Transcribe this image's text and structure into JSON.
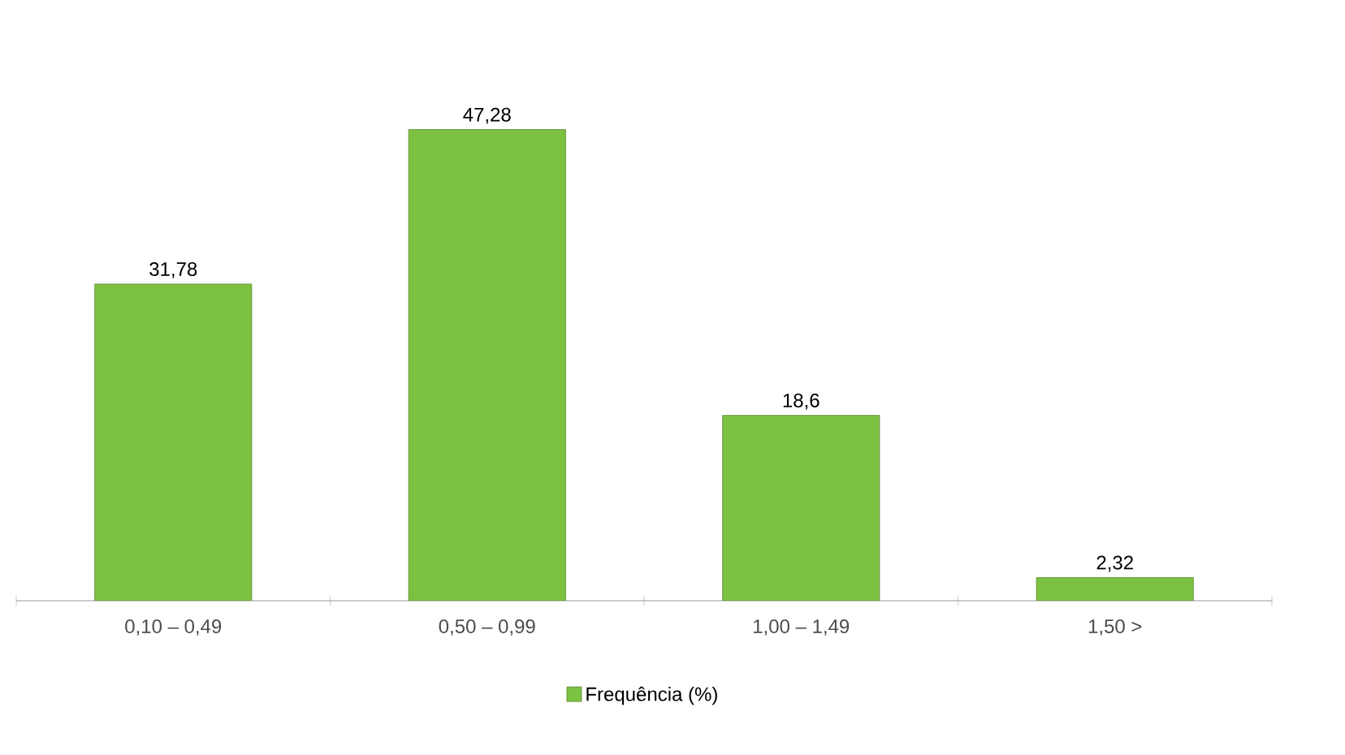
{
  "chart_data": {
    "type": "bar",
    "categories": [
      "0,10 – 0,49",
      "0,50 – 0,99",
      "1,00 – 1,49",
      "1,50 >"
    ],
    "series": [
      {
        "name": "Frequência (%)",
        "color": "#7dc142",
        "values": [
          31.78,
          47.28,
          18.6,
          2.32
        ],
        "value_labels": [
          "31,78",
          "47,28",
          "18,6",
          "2,32"
        ]
      }
    ],
    "legend": "bottom"
  }
}
